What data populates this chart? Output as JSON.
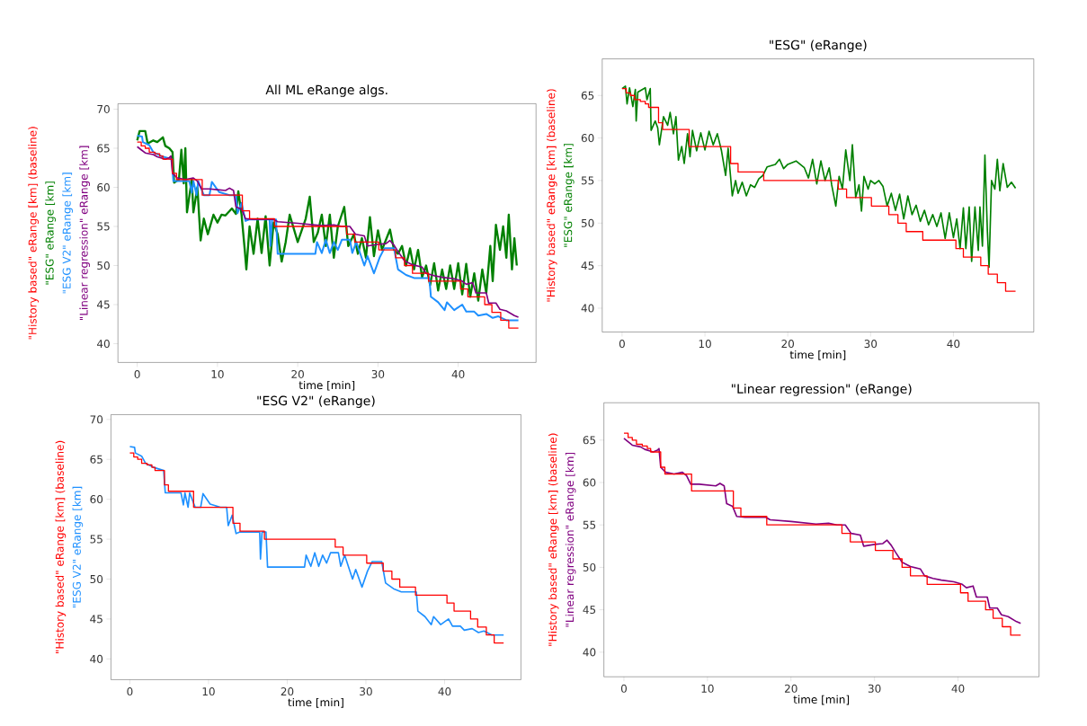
{
  "chart_data": [
    {
      "type": "line",
      "title": "All ML eRange algs.",
      "xlabel": "time [min]",
      "xlim": [
        -2.4,
        49.7
      ],
      "ylim": [
        37.6,
        70.7
      ],
      "xticks": [
        0,
        10,
        20,
        30,
        40
      ],
      "yticks": [
        40,
        45,
        50,
        55,
        60,
        65,
        70
      ],
      "series": [
        {
          "name": "\"History based\" eRange [km] (baseline)",
          "color": "#ff0000",
          "type": "step",
          "x": [
            0,
            0.5,
            1.0,
            1.5,
            2.2,
            2.8,
            3.2,
            4.4,
            4.9,
            8.1,
            13.1,
            14.0,
            17.1,
            26.1,
            27.1,
            30.1,
            32.2,
            33.3,
            34.3,
            36.3,
            40.3,
            41.2,
            43.3,
            44.2,
            45.3,
            46.3,
            47.5
          ],
          "values": [
            65.8,
            65.3,
            65.0,
            64.5,
            64.3,
            64.0,
            63.6,
            61.8,
            61,
            59,
            57,
            56,
            55,
            54,
            53,
            52,
            51,
            50,
            49,
            48,
            47,
            46,
            45,
            44,
            43,
            42,
            42
          ]
        },
        {
          "name": "\"ESG\" eRange [km]",
          "color": "#008000",
          "x": [
            0,
            0.3,
            1.0,
            1.3,
            2.0,
            2.5,
            3.2,
            3.5,
            4.0,
            4.4,
            4.6,
            5.2,
            5.5,
            5.8,
            6.0,
            6.2,
            6.8,
            7.0,
            7.5,
            7.9,
            8.3,
            8.8,
            9.5,
            10.0,
            10.5,
            11.0,
            11.8,
            12.3,
            12.6,
            13.0,
            13.4,
            13.6,
            14.0,
            14.5,
            15.0,
            15.5,
            16.0,
            16.5,
            17.0,
            17.5,
            18.0,
            18.5,
            19.0,
            20.0,
            21.0,
            21.5,
            22.0,
            22.5,
            23.0,
            23.5,
            24.0,
            24.5,
            25.0,
            25.8,
            26.3,
            27.0,
            27.5,
            28.0,
            28.5,
            29.0,
            29.5,
            30.0,
            30.5,
            31.5,
            32.0,
            32.5,
            33.0,
            33.5,
            34.0,
            34.5,
            35.0,
            35.5,
            36.0,
            36.5,
            37.0,
            37.5,
            38.0,
            38.5,
            39.0,
            39.5,
            40.0,
            40.5,
            41.0,
            41.5,
            42.0,
            42.5,
            43.0,
            43.5,
            44.0,
            44.3,
            44.7,
            45.2,
            45.6,
            46.0,
            46.3,
            46.7,
            47.0,
            47.3
          ],
          "values": [
            66,
            67.2,
            67.2,
            65.6,
            66.0,
            65.8,
            66.4,
            65.3,
            65.0,
            64.5,
            60.6,
            61.0,
            64.8,
            60.5,
            65.0,
            56.8,
            61.0,
            56.8,
            60.0,
            53.2,
            56.0,
            54.0,
            56.5,
            55.5,
            56.5,
            56.4,
            57.3,
            56.6,
            59.5,
            56.5,
            52.0,
            49.5,
            55.0,
            51.5,
            56.0,
            51.6,
            56.3,
            50.0,
            55.5,
            54.0,
            50.5,
            53.0,
            56.5,
            53.0,
            56.0,
            58.8,
            53.0,
            54.2,
            56.5,
            52.5,
            56.5,
            51.0,
            55.0,
            57.5,
            52.5,
            54.0,
            51.5,
            53.5,
            51.0,
            56.2,
            51.2,
            54.5,
            52.0,
            54.6,
            52.0,
            51.5,
            52.5,
            50.0,
            52.2,
            49.5,
            52.0,
            48.5,
            50.0,
            47.5,
            50.3,
            46.8,
            49.5,
            47.0,
            50.0,
            47.0,
            50.3,
            46.3,
            50.2,
            46.0,
            49.0,
            45.5,
            49.5,
            46.5,
            52.5,
            48.0,
            55.2,
            52.0,
            55.0,
            51.0,
            56.5,
            49.5,
            53.5,
            50.0
          ]
        },
        {
          "name": "\"ESG V2\" eRange [km]",
          "color": "#1e90ff",
          "x": [
            0,
            0.6,
            0.7,
            1.5,
            2.0,
            3.0,
            4.3,
            4.5,
            6.5,
            6.8,
            7.0,
            7.4,
            7.6,
            8.3,
            9.0,
            9.3,
            10.2,
            11.5,
            12.3,
            12.5,
            13.0,
            13.5,
            14.0,
            16.5,
            16.6,
            16.8,
            17.3,
            17.5,
            21.0,
            22.2,
            22.4,
            23.0,
            23.5,
            24.0,
            24.5,
            25.0,
            25.5,
            26.5,
            26.8,
            27.3,
            27.8,
            28.3,
            28.7,
            29.5,
            30.2,
            30.8,
            32.0,
            32.5,
            33.5,
            34.5,
            36.4,
            36.6,
            37.5,
            38.3,
            38.6,
            39.5,
            40.5,
            41.0,
            42.0,
            42.5,
            43.5,
            44.3,
            45.0,
            46.0,
            47.5
          ],
          "values": [
            66.6,
            66.5,
            65.8,
            65.4,
            64.5,
            64.0,
            63.6,
            60.8,
            60.8,
            59.3,
            60.8,
            59.0,
            60.8,
            59.0,
            59.0,
            60.7,
            59.4,
            59.0,
            59.0,
            56.7,
            58.0,
            55.7,
            55.9,
            55.9,
            52.5,
            55.9,
            55.9,
            51.5,
            51.5,
            51.5,
            53.0,
            51.6,
            53.3,
            51.6,
            53.0,
            52.0,
            53.3,
            53.3,
            51.6,
            53.0,
            51.5,
            50.0,
            51.2,
            49.0,
            51.0,
            52.2,
            52.2,
            49.5,
            48.8,
            48.4,
            48.4,
            46.0,
            45.3,
            44.3,
            45.3,
            44.3,
            45.0,
            44.1,
            44.1,
            43.6,
            43.8,
            43.3,
            43.5,
            43.0,
            43.0
          ]
        },
        {
          "name": "\"Linear regression\" eRange [km]",
          "color": "#800080",
          "x": [
            0,
            0.5,
            1,
            2,
            2.5,
            3.5,
            4.0,
            4.2,
            4.4,
            5,
            6,
            7,
            7.5,
            8,
            9,
            10,
            11,
            11.5,
            12.0,
            12.3,
            13,
            13.5,
            14.5,
            17,
            17.5,
            20,
            23,
            24.5,
            25.5,
            26.5,
            27.2,
            28.3,
            28.7,
            30,
            31,
            31.5,
            32.0,
            32.5,
            33.3,
            34.3,
            35.5,
            36,
            37,
            38,
            39.5,
            40.5,
            41,
            41.8,
            42.2,
            43.5,
            43.8,
            44.7,
            45.2,
            46,
            47,
            47.5
          ],
          "values": [
            65.2,
            64.8,
            64.4,
            64.2,
            63.9,
            63.6,
            63.8,
            64.0,
            61.8,
            61.2,
            61.0,
            61.2,
            60.8,
            59.8,
            59.8,
            59.7,
            59.6,
            59.9,
            59.6,
            57.5,
            57.2,
            56.0,
            55.9,
            55.9,
            55.6,
            55.4,
            55.1,
            55.2,
            55.0,
            55.0,
            54.0,
            53.8,
            52.5,
            52.7,
            52.8,
            53.2,
            52.6,
            51.8,
            50.6,
            50.1,
            49.8,
            49.0,
            48.7,
            48.5,
            48.3,
            48.0,
            47.6,
            47.8,
            46.5,
            46.5,
            45.2,
            45.2,
            44.4,
            44.2,
            43.6,
            43.4
          ]
        }
      ]
    },
    {
      "type": "line",
      "title": "\"ESG\" (eRange)",
      "xlabel": "time [min]",
      "xlim": [
        -2.4,
        49.7
      ],
      "ylim": [
        37.2,
        69.3
      ],
      "xticks": [
        0,
        10,
        20,
        30,
        40
      ],
      "yticks": [
        40,
        45,
        50,
        55,
        60,
        65
      ],
      "series": [
        {
          "name": "\"History based\" eRange [km] (baseline)",
          "color": "#ff0000",
          "type": "step",
          "x": [
            0,
            0.5,
            1.0,
            1.5,
            2.2,
            2.8,
            3.2,
            4.4,
            4.9,
            8.1,
            13.1,
            14.0,
            17.1,
            26.1,
            27.1,
            30.1,
            32.2,
            33.3,
            34.3,
            36.3,
            40.3,
            41.2,
            43.3,
            44.2,
            45.3,
            46.3,
            47.5
          ],
          "values": [
            65.8,
            65.3,
            65.0,
            64.5,
            64.3,
            64.0,
            63.6,
            61.8,
            61,
            59,
            57,
            56,
            55,
            54,
            53,
            52,
            51,
            50,
            49,
            48,
            47,
            46,
            45,
            44,
            43,
            42,
            42
          ]
        },
        {
          "name": "\"ESG\" eRange [km]",
          "color": "#008000",
          "x": [
            0,
            0.4,
            0.6,
            0.9,
            1.3,
            1.6,
            1.7,
            1.9,
            2.8,
            3.0,
            3.4,
            3.5,
            4.0,
            4.3,
            4.5,
            5.0,
            5.5,
            5.8,
            6.2,
            6.5,
            6.8,
            7.2,
            7.5,
            7.9,
            8.2,
            8.5,
            9.0,
            9.5,
            10.0,
            10.5,
            11.0,
            11.5,
            12.0,
            12.5,
            12.8,
            13.0,
            13.3,
            13.7,
            14.0,
            14.5,
            15.0,
            15.5,
            16.0,
            16.5,
            17.0,
            17.5,
            18.5,
            19.0,
            19.5,
            20.0,
            21.0,
            22.0,
            22.5,
            23.0,
            23.5,
            24.0,
            24.5,
            25.0,
            25.3,
            25.8,
            26.2,
            26.6,
            27.0,
            27.5,
            27.8,
            28.2,
            28.6,
            28.9,
            29.2,
            29.7,
            30.0,
            30.5,
            31.0,
            31.5,
            32.0,
            32.5,
            33.0,
            33.5,
            34.0,
            34.5,
            35.0,
            35.5,
            36.0,
            36.5,
            37.0,
            37.5,
            38.0,
            38.5,
            39.0,
            39.5,
            40.0,
            40.4,
            40.8,
            41.2,
            41.5,
            41.9,
            42.2,
            42.6,
            43.0,
            43.2,
            43.5,
            43.8,
            44.1,
            44.3,
            44.6,
            45.0,
            45.3,
            45.6,
            46.0,
            46.5,
            47.0,
            47.5
          ],
          "values": [
            65.8,
            66.1,
            64.0,
            65.9,
            63.7,
            65.7,
            62.0,
            65.4,
            65.9,
            64.5,
            65.8,
            60.9,
            62.0,
            61.2,
            59.2,
            62.5,
            61.5,
            63.0,
            60.5,
            62.5,
            57.4,
            59.0,
            57.0,
            60.5,
            57.8,
            60.9,
            58.5,
            60.6,
            58.6,
            60.8,
            59.2,
            60.5,
            58.5,
            55.6,
            58.8,
            56.5,
            53.2,
            55.0,
            53.5,
            54.8,
            53.2,
            54.5,
            54.2,
            55.2,
            55.6,
            56.6,
            56.9,
            57.5,
            56.4,
            56.9,
            57.3,
            56.5,
            55.3,
            57.5,
            54.6,
            57.3,
            55.0,
            56.5,
            54.5,
            52.0,
            55.5,
            54.0,
            58.6,
            55.0,
            59.2,
            53.0,
            54.5,
            51.4,
            55.5,
            54.0,
            55.0,
            54.6,
            55.0,
            54.3,
            52.0,
            53.5,
            51.5,
            53.4,
            50.5,
            53.2,
            51.0,
            52.1,
            50.2,
            51.5,
            49.8,
            51.0,
            49.6,
            51.2,
            48.2,
            51.2,
            48.3,
            50.5,
            47.0,
            51.8,
            47.0,
            51.9,
            45.5,
            51.9,
            46.8,
            51.9,
            47.3,
            58.0,
            49.0,
            44.8,
            55.0,
            54.0,
            57.5,
            53.8,
            57.0,
            54.2,
            54.8,
            54.1
          ]
        }
      ]
    },
    {
      "type": "line",
      "title": "\"ESG V2\" (eRange)",
      "xlabel": "time [min]",
      "xlim": [
        -2.4,
        49.7
      ],
      "ylim": [
        37.4,
        70.6
      ],
      "xticks": [
        0,
        10,
        20,
        30,
        40
      ],
      "yticks": [
        40,
        45,
        50,
        55,
        60,
        65,
        70
      ],
      "series": [
        {
          "name": "\"History based\" eRange [km] (baseline)",
          "color": "#ff0000",
          "type": "step",
          "x": [
            0,
            0.5,
            1.0,
            1.5,
            2.2,
            2.8,
            3.2,
            4.4,
            4.9,
            8.1,
            13.1,
            14.0,
            17.1,
            26.1,
            27.1,
            30.1,
            32.2,
            33.3,
            34.3,
            36.3,
            40.3,
            41.2,
            43.3,
            44.2,
            45.3,
            46.3,
            47.5
          ],
          "values": [
            65.8,
            65.3,
            65.0,
            64.5,
            64.3,
            64.0,
            63.6,
            61.8,
            61,
            59,
            57,
            56,
            55,
            54,
            53,
            52,
            51,
            50,
            49,
            48,
            47,
            46,
            45,
            44,
            43,
            42,
            42
          ]
        },
        {
          "name": "\"ESG V2\" eRange [km]",
          "color": "#1e90ff",
          "x": [
            0,
            0.6,
            0.7,
            1.5,
            2.0,
            3.0,
            4.3,
            4.5,
            6.5,
            6.8,
            7.0,
            7.4,
            7.6,
            8.3,
            9.0,
            9.3,
            10.2,
            11.5,
            12.3,
            12.5,
            13.0,
            13.5,
            14.0,
            16.5,
            16.6,
            16.8,
            17.3,
            17.5,
            21.0,
            22.2,
            22.4,
            23.0,
            23.5,
            24.0,
            24.5,
            25.0,
            25.5,
            26.5,
            26.8,
            27.3,
            27.8,
            28.3,
            28.7,
            29.5,
            30.2,
            30.8,
            32.0,
            32.5,
            33.5,
            34.5,
            36.4,
            36.6,
            37.5,
            38.3,
            38.6,
            39.5,
            40.5,
            41.0,
            42.0,
            42.5,
            43.5,
            44.3,
            45.0,
            46.0,
            47.5
          ],
          "values": [
            66.6,
            66.5,
            65.8,
            65.4,
            64.5,
            64.0,
            63.6,
            60.8,
            60.8,
            59.3,
            60.8,
            59.0,
            60.8,
            59.0,
            59.0,
            60.7,
            59.4,
            59.0,
            59.0,
            56.7,
            58.0,
            55.7,
            55.9,
            55.9,
            52.5,
            55.9,
            55.9,
            51.5,
            51.5,
            51.5,
            53.0,
            51.6,
            53.3,
            51.6,
            53.0,
            52.0,
            53.3,
            53.3,
            51.6,
            53.0,
            51.5,
            50.0,
            51.2,
            49.0,
            51.0,
            52.2,
            52.2,
            49.5,
            48.8,
            48.4,
            48.4,
            46.0,
            45.3,
            44.3,
            45.3,
            44.3,
            45.0,
            44.1,
            44.1,
            43.6,
            43.8,
            43.3,
            43.5,
            43.0,
            43.0
          ]
        }
      ]
    },
    {
      "type": "line",
      "title": "\"Linear regression\" (eRange)",
      "xlabel": "time [min]",
      "xlim": [
        -2.4,
        49.7
      ],
      "ylim": [
        37.1,
        69.4
      ],
      "xticks": [
        0,
        10,
        20,
        30,
        40
      ],
      "yticks": [
        40,
        45,
        50,
        55,
        60,
        65
      ],
      "series": [
        {
          "name": "\"History based\" eRange [km] (baseline)",
          "color": "#ff0000",
          "type": "step",
          "x": [
            0,
            0.5,
            1.0,
            1.5,
            2.2,
            2.8,
            3.2,
            4.4,
            4.9,
            8.1,
            13.1,
            14.0,
            17.1,
            26.1,
            27.1,
            30.1,
            32.2,
            33.3,
            34.3,
            36.3,
            40.3,
            41.2,
            43.3,
            44.2,
            45.3,
            46.3,
            47.5
          ],
          "values": [
            65.8,
            65.3,
            65.0,
            64.5,
            64.3,
            64.0,
            63.6,
            61.8,
            61,
            59,
            57,
            56,
            55,
            54,
            53,
            52,
            51,
            50,
            49,
            48,
            47,
            46,
            45,
            44,
            43,
            42,
            42
          ]
        },
        {
          "name": "\"Linear regression\" eRange [km]",
          "color": "#800080",
          "x": [
            0,
            0.5,
            1,
            2,
            2.5,
            3.5,
            4.0,
            4.2,
            4.4,
            5,
            6,
            7,
            7.5,
            8,
            9,
            10,
            11,
            11.5,
            12.0,
            12.3,
            13,
            13.5,
            14.5,
            17,
            17.5,
            20,
            23,
            24.5,
            25.5,
            26.5,
            27.2,
            28.3,
            28.7,
            30,
            31,
            31.5,
            32.0,
            32.5,
            33.3,
            34.3,
            35.5,
            36,
            37,
            38,
            39.5,
            40.5,
            41,
            41.8,
            42.2,
            43.5,
            43.8,
            44.7,
            45.2,
            46,
            47,
            47.5
          ],
          "values": [
            65.2,
            64.8,
            64.4,
            64.2,
            63.9,
            63.6,
            63.8,
            64.0,
            61.8,
            61.2,
            61.0,
            61.2,
            60.8,
            59.8,
            59.8,
            59.7,
            59.6,
            59.9,
            59.6,
            57.5,
            57.2,
            56.0,
            55.9,
            55.9,
            55.6,
            55.4,
            55.1,
            55.2,
            55.0,
            55.0,
            54.0,
            53.8,
            52.5,
            52.7,
            52.8,
            53.2,
            52.6,
            51.8,
            50.6,
            50.1,
            49.8,
            49.0,
            48.7,
            48.5,
            48.3,
            48.0,
            47.6,
            47.8,
            46.5,
            46.5,
            45.2,
            45.2,
            44.4,
            44.2,
            43.6,
            43.4
          ]
        }
      ]
    }
  ]
}
